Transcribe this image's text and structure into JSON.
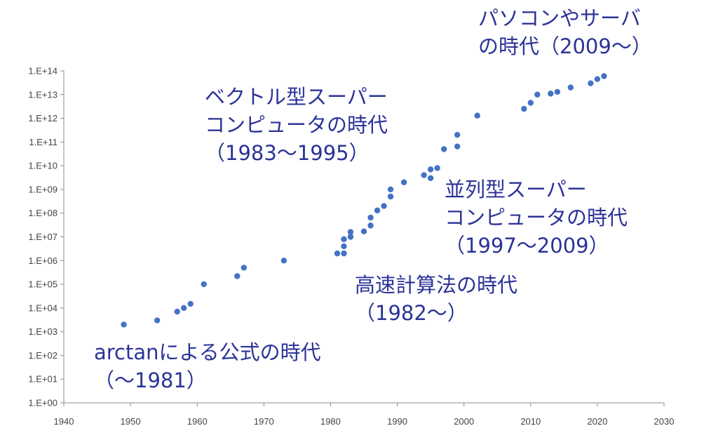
{
  "chart_data": {
    "type": "scatter",
    "title": "",
    "xlabel": "",
    "ylabel": "",
    "xlim": [
      1940,
      2030
    ],
    "ylim_log10": [
      0,
      14
    ],
    "y_scale": "log",
    "x_ticks": [
      "1940",
      "1950",
      "1960",
      "1970",
      "1980",
      "1990",
      "2000",
      "2010",
      "2020",
      "2030"
    ],
    "y_ticks": [
      "1.E+00",
      "1.E+01",
      "1.E+02",
      "1.E+03",
      "1.E+04",
      "1.E+05",
      "1.E+06",
      "1.E+07",
      "1.E+08",
      "1.E+09",
      "1.E+10",
      "1.E+11",
      "1.E+12",
      "1.E+13",
      "1.E+14"
    ],
    "grid": false,
    "point_color": "#4472c4",
    "points": [
      {
        "x": 1949,
        "y": 2000
      },
      {
        "x": 1954,
        "y": 3000
      },
      {
        "x": 1957,
        "y": 7000
      },
      {
        "x": 1958,
        "y": 10000
      },
      {
        "x": 1959,
        "y": 15000
      },
      {
        "x": 1961,
        "y": 100000
      },
      {
        "x": 1966,
        "y": 220000
      },
      {
        "x": 1967,
        "y": 500000
      },
      {
        "x": 1973,
        "y": 1000000
      },
      {
        "x": 1981,
        "y": 2000000
      },
      {
        "x": 1982,
        "y": 2000000
      },
      {
        "x": 1982,
        "y": 4000000
      },
      {
        "x": 1982,
        "y": 8000000
      },
      {
        "x": 1983,
        "y": 10000000
      },
      {
        "x": 1983,
        "y": 16000000
      },
      {
        "x": 1985,
        "y": 17000000
      },
      {
        "x": 1986,
        "y": 30000000
      },
      {
        "x": 1986,
        "y": 65000000
      },
      {
        "x": 1987,
        "y": 130000000
      },
      {
        "x": 1988,
        "y": 200000000
      },
      {
        "x": 1989,
        "y": 500000000
      },
      {
        "x": 1989,
        "y": 1000000000
      },
      {
        "x": 1991,
        "y": 2000000000
      },
      {
        "x": 1994,
        "y": 4000000000
      },
      {
        "x": 1995,
        "y": 3000000000
      },
      {
        "x": 1995,
        "y": 7000000000
      },
      {
        "x": 1996,
        "y": 8000000000
      },
      {
        "x": 1997,
        "y": 50000000000
      },
      {
        "x": 1999,
        "y": 65000000000
      },
      {
        "x": 1999,
        "y": 200000000000
      },
      {
        "x": 2002,
        "y": 1300000000000
      },
      {
        "x": 2009,
        "y": 2500000000000
      },
      {
        "x": 2010,
        "y": 4500000000000
      },
      {
        "x": 2011,
        "y": 10000000000000
      },
      {
        "x": 2013,
        "y": 11000000000000
      },
      {
        "x": 2014,
        "y": 13000000000000
      },
      {
        "x": 2016,
        "y": 20000000000000
      },
      {
        "x": 2019,
        "y": 30000000000000
      },
      {
        "x": 2020,
        "y": 45000000000000
      },
      {
        "x": 2021,
        "y": 60000000000000
      }
    ],
    "annotations": [
      {
        "lines": [
          "パソコンやサーバ",
          "の時代（2009～）"
        ]
      },
      {
        "lines": [
          "ベクトル型スーパー",
          "コンピュータの時代",
          "（1983～1995）"
        ]
      },
      {
        "lines": [
          "並列型スーパー",
          "コンピュータの時代",
          "（1997～2009）"
        ]
      },
      {
        "lines": [
          "高速計算法の時代",
          "（1982～）"
        ]
      },
      {
        "lines": [
          "arctanによる公式の時代",
          "（～1981）"
        ]
      }
    ]
  }
}
